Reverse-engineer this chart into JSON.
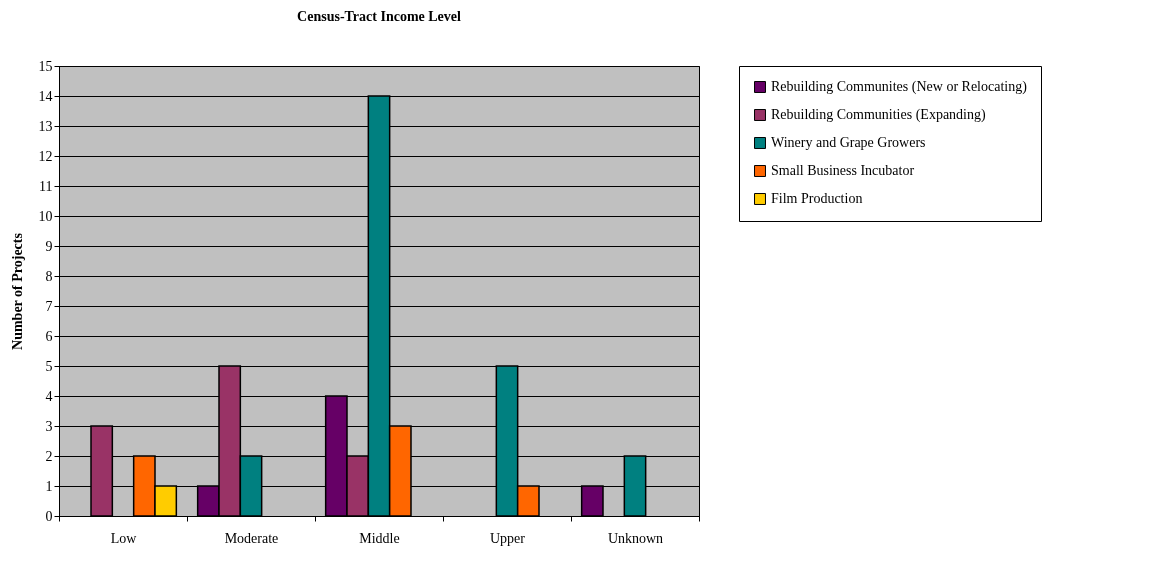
{
  "chart_data": {
    "type": "bar",
    "title": "Census-Tract Income Level",
    "ylabel": "Number of Projects",
    "categories": [
      "Low",
      "Moderate",
      "Middle",
      "Upper",
      "Unknown"
    ],
    "series": [
      {
        "name": "Rebuilding Communites (New or Relocating)",
        "color": "#660066",
        "values": [
          null,
          1,
          4,
          null,
          1
        ]
      },
      {
        "name": "Rebuilding Communities (Expanding)",
        "color": "#993366",
        "values": [
          3,
          5,
          2,
          null,
          null
        ]
      },
      {
        "name": "Winery and Grape Growers",
        "color": "#008080",
        "values": [
          null,
          2,
          14,
          5,
          2
        ]
      },
      {
        "name": "Small Business Incubator",
        "color": "#ff6600",
        "values": [
          2,
          null,
          3,
          1,
          null
        ]
      },
      {
        "name": "Film Production",
        "color": "#ffcc00",
        "values": [
          1,
          null,
          null,
          null,
          null
        ]
      }
    ],
    "ylim": [
      0,
      15
    ],
    "yticks": [
      0,
      1,
      2,
      3,
      4,
      5,
      6,
      7,
      8,
      9,
      10,
      11,
      12,
      13,
      14,
      15
    ],
    "grid": "y",
    "legend": "right"
  }
}
